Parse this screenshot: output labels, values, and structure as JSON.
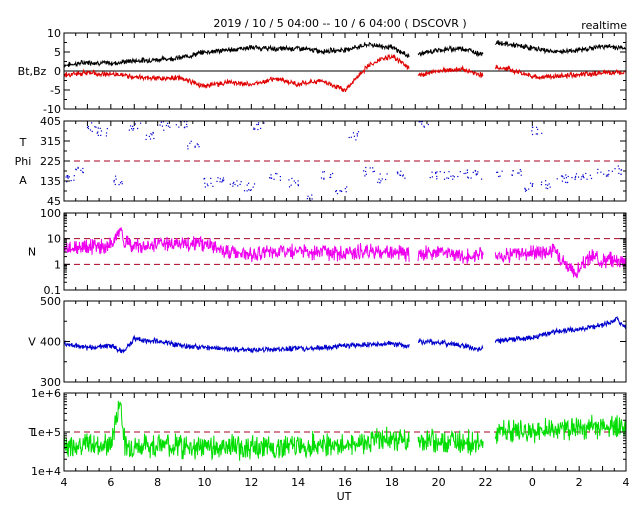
{
  "header": {
    "title": "2019 / 10 / 5   04:00 -- 10 / 6   04:00 ( DSCOVR )",
    "badge": "realtime"
  },
  "colors": {
    "bt": "#000000",
    "bz": "#e00000",
    "phi": "#0000cc",
    "density": "#ee00ee",
    "speed": "#0000cc",
    "temperature": "#00dd00",
    "reference": "#aa0022"
  },
  "chart_data": {
    "type": "line",
    "title": "2019 / 10 / 5   04:00 -- 10 / 6   04:00 ( DSCOVR )",
    "xlabel": "UT",
    "x_ticks": [
      "4",
      "6",
      "8",
      "10",
      "12",
      "14",
      "16",
      "18",
      "20",
      "22",
      "0",
      "2",
      "4"
    ],
    "x_range_hours": [
      4,
      28
    ],
    "data_gaps_hours": [
      [
        18.75,
        19.1
      ],
      [
        21.9,
        22.4
      ]
    ],
    "panels": [
      {
        "id": "magnetic-field",
        "ylabel": "Bt,Bz",
        "ylim": [
          -10,
          10
        ],
        "y_ticks": [
          "10",
          "5",
          "0",
          "-5",
          "-10"
        ],
        "reference_lines": [
          {
            "value": 0,
            "style": "solid",
            "color": "#000000"
          }
        ],
        "series": [
          {
            "name": "Bt",
            "color": "#000000",
            "x": [
              4,
              5,
              6,
              7,
              8,
              9,
              10,
              11,
              12,
              13,
              14,
              15,
              16,
              17,
              18,
              18.7,
              19.2,
              20,
              21,
              21.8,
              22.5,
              23,
              24,
              25,
              26,
              27,
              28
            ],
            "values": [
              1.5,
              2.3,
              2.0,
              2.7,
              3.0,
              3.5,
              5.0,
              5.5,
              6.2,
              5.8,
              6.0,
              5.2,
              5.6,
              7.0,
              6.2,
              4.0,
              4.5,
              5.5,
              6.0,
              4.5,
              7.5,
              7.0,
              6.0,
              5.0,
              5.5,
              6.5,
              6.0
            ]
          },
          {
            "name": "Bz",
            "color": "#e00000",
            "x": [
              4,
              5,
              6,
              7,
              8,
              9,
              10,
              11,
              12,
              13,
              14,
              15,
              16,
              17,
              18,
              18.7,
              19.2,
              20,
              21,
              21.8,
              22.5,
              23,
              24,
              25,
              26,
              27,
              28
            ],
            "values": [
              -1.0,
              -0.5,
              -0.8,
              -1.5,
              -2.0,
              -1.8,
              -4.0,
              -3.0,
              -3.5,
              -2.0,
              -3.5,
              -2.5,
              -5.0,
              1.5,
              4.0,
              1.0,
              -1.0,
              0.0,
              0.5,
              -1.0,
              1.0,
              0.5,
              -1.5,
              -1.5,
              -1.0,
              -0.5,
              -0.5
            ]
          }
        ]
      },
      {
        "id": "phi-angle",
        "ylabel_lines": [
          "T",
          "Phi",
          "A"
        ],
        "ylim": [
          45,
          405
        ],
        "y_ticks": [
          "405",
          "315",
          "225",
          "135",
          "45"
        ],
        "reference_lines": [
          {
            "value": 225,
            "style": "dashed",
            "color": "#aa0022"
          }
        ],
        "series": [
          {
            "name": "Phi",
            "color": "#0000cc",
            "markers": "dots",
            "x": [
              4.2,
              4.6,
              5.2,
              5.6,
              6.3,
              7.0,
              7.6,
              8.3,
              9.0,
              9.5,
              10.1,
              10.6,
              11.3,
              11.9,
              12.3,
              13.0,
              13.8,
              14.5,
              15.2,
              15.8,
              16.3,
              17.0,
              17.6,
              18.4,
              19.3,
              19.8,
              20.4,
              21.0,
              21.6,
              22.5,
              23.3,
              23.9,
              24.2,
              24.6,
              25.2,
              25.7,
              26.3,
              27.0,
              27.6
            ],
            "values": [
              150,
              180,
              380,
              360,
              140,
              380,
              340,
              385,
              395,
              300,
              130,
              140,
              120,
              110,
              380,
              160,
              130,
              60,
              160,
              95,
              340,
              180,
              150,
              170,
              400,
              165,
              160,
              170,
              165,
              170,
              175,
              110,
              360,
              120,
              145,
              150,
              165,
              175,
              185
            ]
          }
        ]
      },
      {
        "id": "density",
        "ylabel": "N",
        "ylim": [
          0.1,
          100
        ],
        "log_scale": true,
        "y_ticks": [
          "100",
          "10",
          "1",
          "0.1"
        ],
        "reference_lines": [
          {
            "value": 10,
            "style": "dashed",
            "color": "#aa0022"
          },
          {
            "value": 1,
            "style": "dashed",
            "color": "#aa0022"
          }
        ],
        "series": [
          {
            "name": "N",
            "color": "#ee00ee",
            "x": [
              4,
              5,
              6,
              6.4,
              6.6,
              7,
              8,
              9,
              10,
              11,
              12,
              13,
              14,
              15,
              16,
              17,
              18,
              18.7,
              19.2,
              20,
              21,
              21.8,
              22.5,
              23,
              24,
              25,
              25.8,
              26.5,
              27,
              28
            ],
            "values": [
              4.0,
              4.5,
              5.0,
              25,
              6.0,
              5.5,
              6.0,
              6.5,
              6.0,
              3.0,
              2.5,
              3.0,
              3.5,
              3.0,
              2.5,
              3.5,
              3.0,
              2.5,
              2.5,
              3.0,
              2.0,
              2.5,
              2.0,
              2.5,
              3.0,
              3.5,
              0.4,
              2.0,
              1.5,
              1.5
            ]
          }
        ]
      },
      {
        "id": "speed",
        "ylabel": "V",
        "ylim": [
          300,
          500
        ],
        "y_ticks": [
          "500",
          "400",
          "300"
        ],
        "reference_lines": [],
        "series": [
          {
            "name": "V",
            "color": "#0000cc",
            "x": [
              4,
              5,
              6,
              6.5,
              7,
              8,
              9,
              10,
              11,
              12,
              13,
              14,
              15,
              16,
              17,
              18,
              18.7,
              19.2,
              20,
              21,
              21.8,
              22.5,
              23,
              24,
              25,
              26,
              27,
              27.6,
              28
            ],
            "values": [
              395,
              385,
              390,
              375,
              405,
              400,
              390,
              385,
              380,
              378,
              380,
              382,
              385,
              390,
              392,
              395,
              388,
              400,
              398,
              390,
              380,
              400,
              405,
              410,
              425,
              430,
              440,
              455,
              435
            ]
          }
        ]
      },
      {
        "id": "temperature",
        "ylabel": "T",
        "ylim": [
          10000,
          1000000
        ],
        "log_scale": true,
        "y_ticks": [
          "1e+6",
          "1e+5",
          "1e+4"
        ],
        "reference_lines": [
          {
            "value": 100000,
            "style": "dashed",
            "color": "#aa0022"
          }
        ],
        "series": [
          {
            "name": "T",
            "color": "#00dd00",
            "x": [
              4,
              5,
              6,
              6.4,
              6.6,
              7,
              8,
              9,
              10,
              11,
              12,
              13,
              14,
              15,
              16,
              17,
              18,
              18.7,
              19.2,
              20,
              21,
              21.8,
              22.5,
              23,
              24,
              25,
              26,
              27,
              27.6,
              28
            ],
            "values": [
              45000,
              50000,
              42000,
              700000,
              45000,
              40000,
              50000,
              45000,
              40000,
              42000,
              38000,
              40000,
              45000,
              50000,
              48000,
              60000,
              65000,
              55000,
              60000,
              55000,
              60000,
              50000,
              90000,
              110000,
              100000,
              120000,
              125000,
              130000,
              150000,
              140000
            ]
          }
        ]
      }
    ]
  }
}
